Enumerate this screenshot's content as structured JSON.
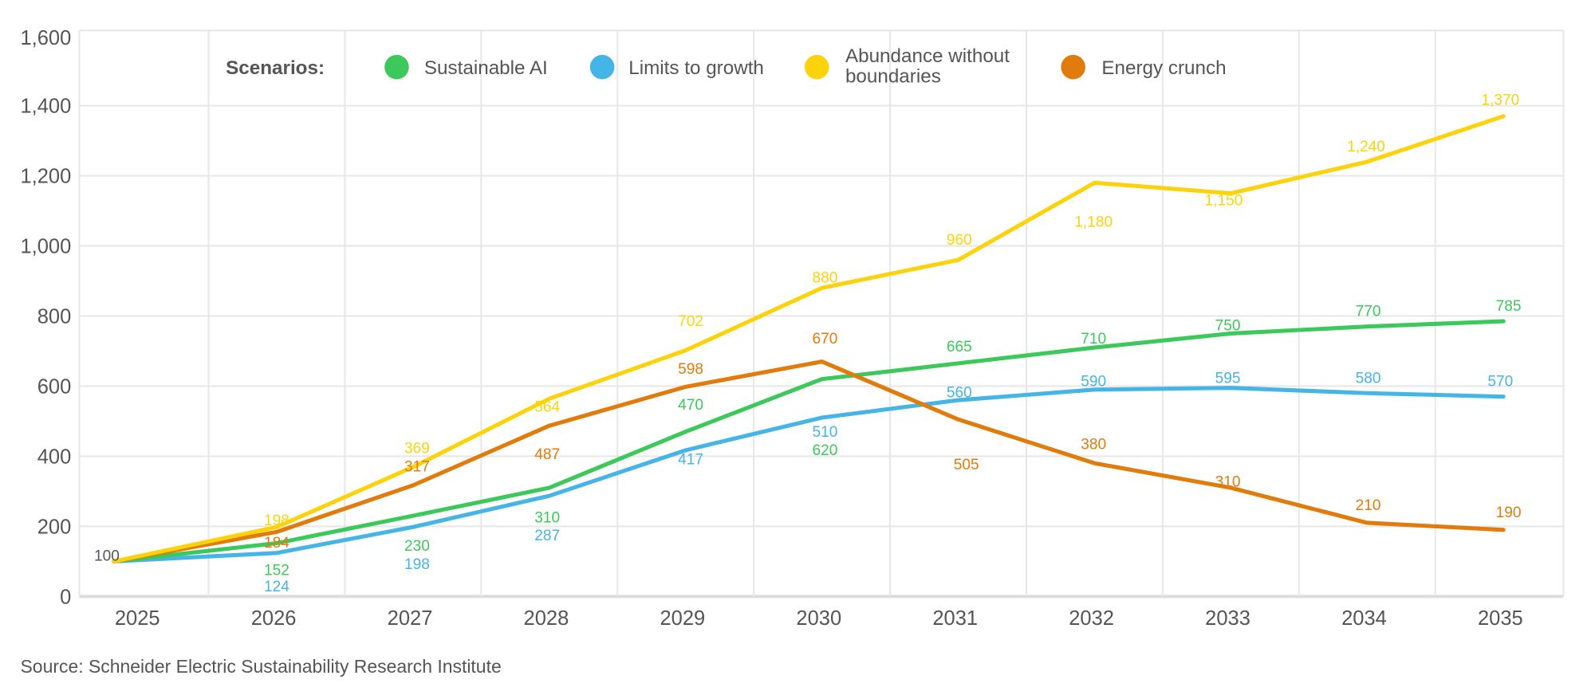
{
  "chart_data": {
    "type": "line",
    "title": "",
    "xlabel": "",
    "ylabel": "",
    "categories": [
      "2025",
      "2026",
      "2027",
      "2028",
      "2029",
      "2030",
      "2031",
      "2032",
      "2033",
      "2034",
      "2035"
    ],
    "ylim": [
      0,
      1600
    ],
    "yticks": [
      0,
      200,
      400,
      600,
      800,
      1000,
      1200,
      1400,
      1600
    ],
    "ytick_labels": [
      "0",
      "200",
      "400",
      "600",
      "800",
      "1,000",
      "1,200",
      "1,400",
      "1,600"
    ],
    "grid": "both",
    "legend": {
      "title": "Scenarios:",
      "placement": "top",
      "entries": [
        "Sustainable AI",
        "Limits to growth",
        "Abundance without boundaries",
        "Energy crunch"
      ]
    },
    "start_label": "100",
    "series": [
      {
        "name": "Sustainable AI",
        "color": "#3cc85a",
        "values": [
          100,
          152,
          230,
          310,
          470,
          620,
          665,
          710,
          750,
          770,
          785
        ],
        "labels": [
          "",
          "152",
          "230",
          "310",
          "470",
          "620",
          "665",
          "710",
          "750",
          "770",
          "785"
        ]
      },
      {
        "name": "Limits to growth",
        "color": "#45b4e6",
        "values": [
          100,
          124,
          198,
          287,
          417,
          510,
          560,
          590,
          595,
          580,
          570
        ],
        "labels": [
          "",
          "124",
          "198",
          "287",
          "417",
          "510",
          "560",
          "590",
          "595",
          "580",
          "570"
        ]
      },
      {
        "name": "Abundance without boundaries",
        "color": "#fcd20a",
        "values": [
          100,
          198,
          369,
          564,
          702,
          880,
          960,
          1180,
          1150,
          1240,
          1370
        ],
        "labels": [
          "",
          "198",
          "369",
          "564",
          "702",
          "880",
          "960",
          "1,180",
          "1,150",
          "1,240",
          "1,370"
        ]
      },
      {
        "name": "Energy crunch",
        "color": "#e07b0c",
        "values": [
          100,
          184,
          317,
          487,
          598,
          670,
          505,
          380,
          310,
          210,
          190
        ],
        "labels": [
          "",
          "184",
          "317",
          "487",
          "598",
          "670",
          "505",
          "380",
          "310",
          "210",
          "190"
        ]
      }
    ],
    "source": "Source: Schneider Electric Sustainability Research Institute"
  }
}
